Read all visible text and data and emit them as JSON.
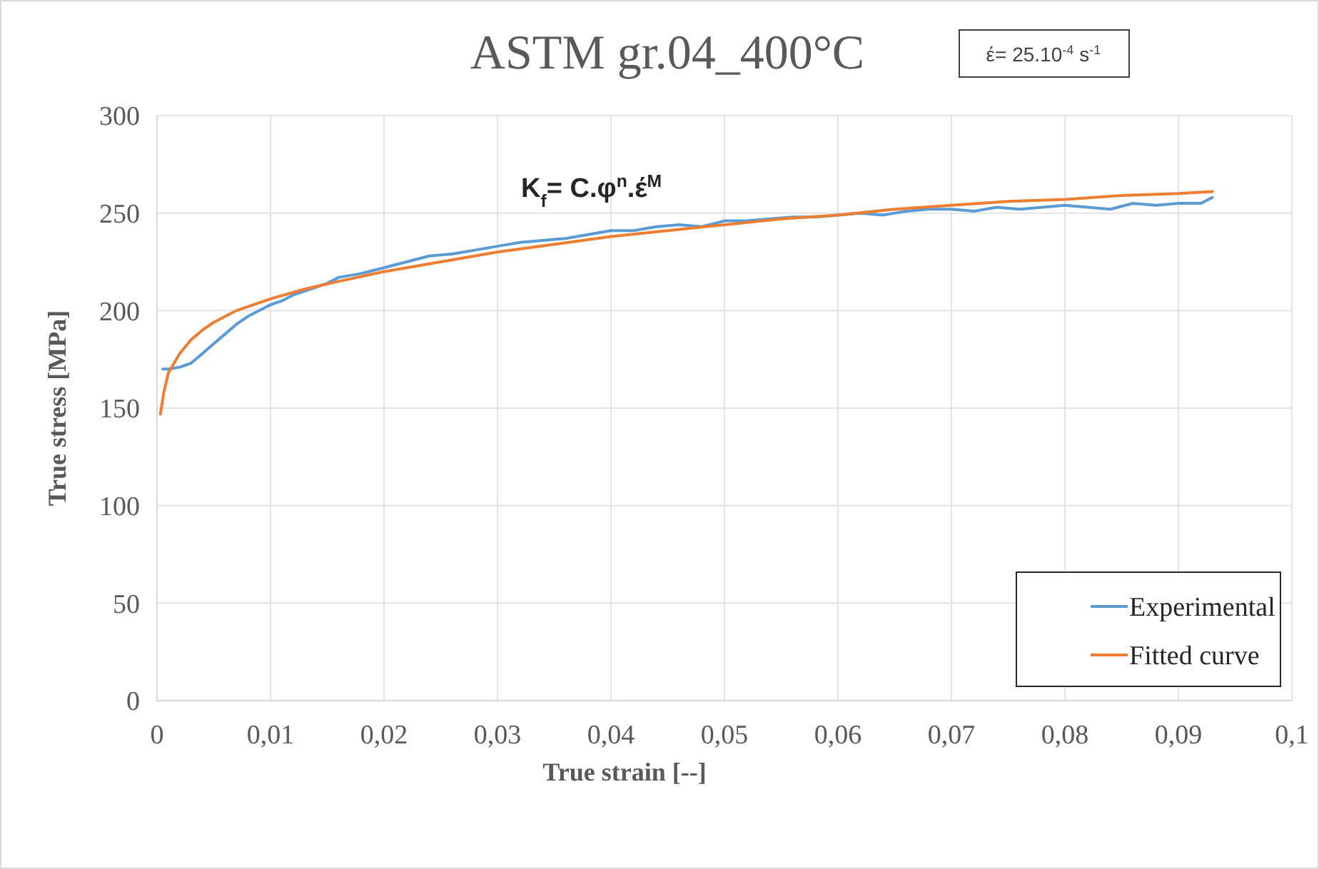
{
  "chart_data": {
    "type": "line",
    "title": "ASTM gr.04_400°C",
    "xlabel": "True strain [--]",
    "ylabel": "True stress [MPa]",
    "annotations": [
      "έ= 25.10$^{-4}$ s$^{-1}$",
      "K$_{f}$= C.φ$^{n}$.έ$^{M}$"
    ],
    "xlim": [
      0,
      0.1
    ],
    "ylim": [
      0,
      300
    ],
    "xticks": [
      0,
      {
        "value": 0.01,
        "label": "0,01"
      },
      {
        "value": 0.02,
        "label": "0,02"
      },
      {
        "value": 0.03,
        "label": "0,03"
      },
      {
        "value": 0.04,
        "label": "0,04"
      },
      {
        "value": 0.05,
        "label": "0,05"
      },
      {
        "value": 0.06,
        "label": "0,06"
      },
      {
        "value": 0.07,
        "label": "0,07"
      },
      {
        "value": 0.08,
        "label": "0,08"
      },
      {
        "value": 0.09,
        "label": "0,09"
      },
      {
        "value": 0.1,
        "label": "0,1"
      }
    ],
    "yticks": [
      0,
      50,
      100,
      150,
      200,
      250,
      300
    ],
    "grid": true,
    "legend": "bottom right",
    "marker": "none",
    "line_style": "solid",
    "series": [
      {
        "name": "Experimental",
        "color": "#5b9bd5",
        "x": [
          0.0005,
          0.001,
          0.002,
          0.003,
          0.004,
          0.005,
          0.006,
          0.007,
          0.008,
          0.009,
          0.01,
          0.011,
          0.012,
          0.013,
          0.015,
          0.016,
          0.018,
          0.02,
          0.022,
          0.024,
          0.026,
          0.028,
          0.03,
          0.032,
          0.034,
          0.036,
          0.038,
          0.04,
          0.042,
          0.044,
          0.046,
          0.048,
          0.05,
          0.052,
          0.054,
          0.056,
          0.058,
          0.06,
          0.062,
          0.064,
          0.066,
          0.068,
          0.07,
          0.072,
          0.074,
          0.076,
          0.078,
          0.08,
          0.082,
          0.084,
          0.086,
          0.088,
          0.09,
          0.092,
          0.093
        ],
        "values": [
          170,
          170,
          171,
          173,
          178,
          183,
          188,
          193,
          197,
          200,
          203,
          205,
          208,
          210,
          214,
          217,
          219,
          222,
          225,
          228,
          229,
          231,
          233,
          235,
          236,
          237,
          239,
          241,
          241,
          243,
          244,
          243,
          246,
          246,
          247,
          248,
          248,
          249,
          250,
          249,
          251,
          252,
          252,
          251,
          253,
          252,
          253,
          254,
          253,
          252,
          255,
          254,
          255,
          255,
          258
        ]
      },
      {
        "name": "Fitted curve",
        "color": "#ed7d31",
        "x": [
          0.0003,
          0.0006,
          0.001,
          0.002,
          0.003,
          0.004,
          0.005,
          0.007,
          0.01,
          0.013,
          0.016,
          0.02,
          0.025,
          0.03,
          0.035,
          0.04,
          0.045,
          0.05,
          0.055,
          0.06,
          0.065,
          0.07,
          0.075,
          0.08,
          0.085,
          0.09,
          0.093
        ],
        "values": [
          147,
          158,
          168,
          178,
          185,
          190,
          194,
          200,
          206,
          211,
          215,
          220,
          225,
          230,
          234,
          238,
          241,
          244,
          247,
          249,
          252,
          254,
          256,
          257,
          259,
          260,
          261
        ]
      }
    ]
  }
}
